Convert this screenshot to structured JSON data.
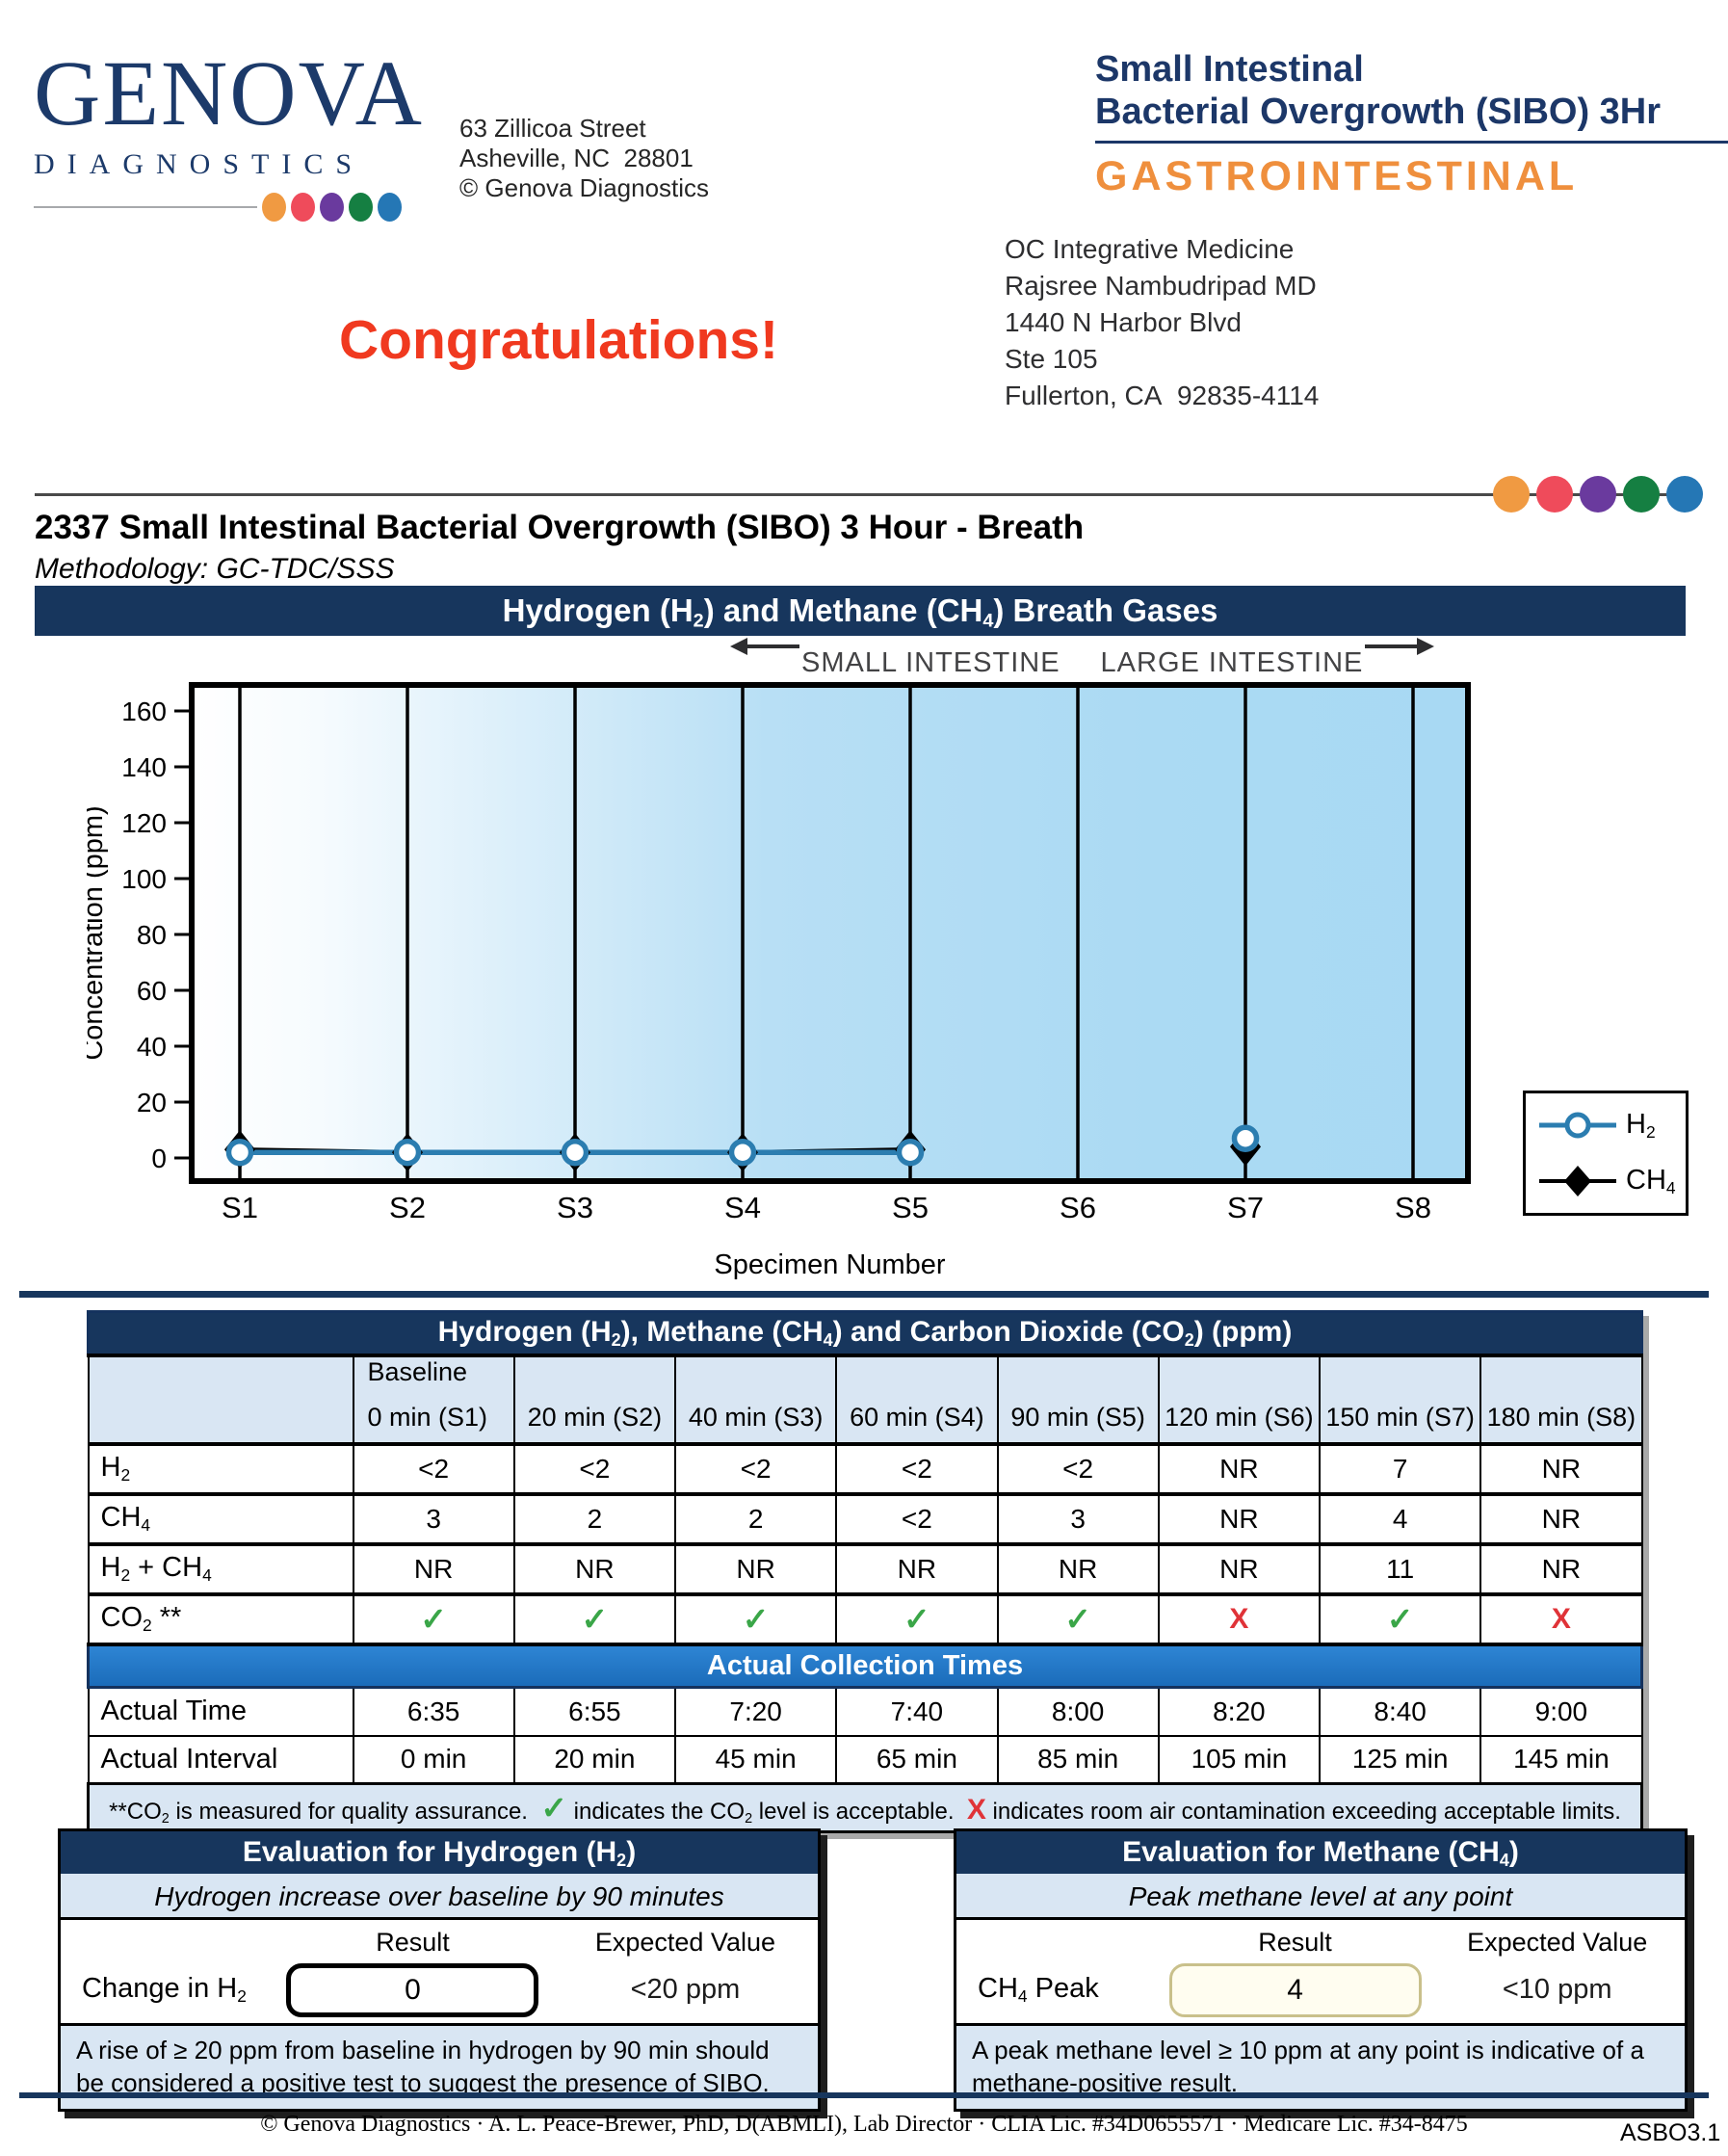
{
  "header": {
    "logo": {
      "name": "GENOVA",
      "sub": "DIAGNOSTICS"
    },
    "address": [
      "63 Zillicoa Street",
      "Asheville, NC  28801",
      "© Genova Diagnostics"
    ],
    "product": {
      "line1": "Small Intestinal",
      "line2": "Bacterial Overgrowth (SIBO) 3Hr",
      "category": "GASTROINTESTINAL"
    },
    "congratulations": "Congratulations!",
    "practice": [
      "OC Integrative Medicine",
      "Rajsree Nambudripad MD",
      "1440 N Harbor Blvd",
      "Ste 105",
      "Fullerton, CA  92835-4114"
    ]
  },
  "report": {
    "title": "2337 Small Intestinal Bacterial Overgrowth (SIBO) 3 Hour - Breath",
    "methodology": "Methodology: GC-TDC/SSS"
  },
  "chart": {
    "banner_parts": [
      {
        "t": "Hydrogen (H"
      },
      {
        "t": "2",
        "sub": true
      },
      {
        "t": ") and Methane (CH"
      },
      {
        "t": "4",
        "sub": true
      },
      {
        "t": ") Breath Gases"
      }
    ],
    "region_left": "SMALL INTESTINE",
    "region_right": "LARGE INTESTINE",
    "legend": [
      {
        "series": "H2",
        "label_parts": [
          {
            "t": "H"
          },
          {
            "t": "2",
            "sub": true
          }
        ]
      },
      {
        "series": "CH4",
        "label_parts": [
          {
            "t": "CH"
          },
          {
            "t": "4",
            "sub": true
          }
        ]
      }
    ]
  },
  "chart_data": {
    "type": "line",
    "title": "Hydrogen (H2) and Methane (CH4) Breath Gases",
    "x_categories": [
      "S1",
      "S2",
      "S3",
      "S4",
      "S5",
      "S6",
      "S7",
      "S8"
    ],
    "xlabel": "Specimen Number",
    "ylabel": "Concentration (ppm)",
    "ylim": [
      0,
      168
    ],
    "yticks": [
      0,
      20,
      40,
      60,
      80,
      100,
      120,
      140,
      160
    ],
    "grid": false,
    "legend_position": "outside-right-bottom",
    "series": [
      {
        "name": "H2",
        "marker": "circle",
        "color": "#2b7db0",
        "values": [
          2,
          2,
          2,
          2,
          2,
          null,
          7,
          null
        ]
      },
      {
        "name": "CH4",
        "marker": "diamond",
        "color": "#000000",
        "values": [
          3,
          2,
          2,
          2,
          3,
          null,
          4,
          null
        ]
      }
    ]
  },
  "results_table": {
    "title_parts": [
      {
        "t": "Hydrogen (H"
      },
      {
        "t": "2",
        "sub": true
      },
      {
        "t": "), Methane (CH"
      },
      {
        "t": "4",
        "sub": true
      },
      {
        "t": ") and Carbon Dioxide (CO"
      },
      {
        "t": "2",
        "sub": true
      },
      {
        "t": ") (ppm)"
      }
    ],
    "col_headers": [
      {
        "line1": "Baseline",
        "line2": "0 min (S1)"
      },
      {
        "line1": "",
        "line2": "20 min (S2)"
      },
      {
        "line1": "",
        "line2": "40 min (S3)"
      },
      {
        "line1": "",
        "line2": "60 min (S4)"
      },
      {
        "line1": "",
        "line2": "90 min (S5)"
      },
      {
        "line1": "",
        "line2": "120 min (S6)"
      },
      {
        "line1": "",
        "line2": "150 min (S7)"
      },
      {
        "line1": "",
        "line2": "180 min (S8)"
      }
    ],
    "rows": [
      {
        "label_parts": [
          {
            "t": "H"
          },
          {
            "t": "2",
            "sub": true
          }
        ],
        "values": [
          "<2",
          "<2",
          "<2",
          "<2",
          "<2",
          "NR",
          "7",
          "NR"
        ]
      },
      {
        "label_parts": [
          {
            "t": "CH"
          },
          {
            "t": "4",
            "sub": true
          }
        ],
        "values": [
          "3",
          "2",
          "2",
          "<2",
          "3",
          "NR",
          "4",
          "NR"
        ]
      },
      {
        "label_parts": [
          {
            "t": "H"
          },
          {
            "t": "2",
            "sub": true
          },
          {
            "t": " + CH"
          },
          {
            "t": "4",
            "sub": true
          }
        ],
        "values": [
          "NR",
          "NR",
          "NR",
          "NR",
          "NR",
          "NR",
          "11",
          "NR"
        ]
      },
      {
        "label_parts": [
          {
            "t": "CO"
          },
          {
            "t": "2",
            "sub": true
          },
          {
            "t": " **"
          }
        ],
        "values": [
          "check",
          "check",
          "check",
          "check",
          "check",
          "x",
          "check",
          "x"
        ]
      }
    ],
    "collection_banner": "Actual Collection Times",
    "time_rows": [
      {
        "label": "Actual Time",
        "values": [
          "6:35",
          "6:55",
          "7:20",
          "7:40",
          "8:00",
          "8:20",
          "8:40",
          "9:00"
        ]
      },
      {
        "label": "Actual Interval",
        "values": [
          "0 min",
          "20 min",
          "45 min",
          "65 min",
          "85 min",
          "105 min",
          "125 min",
          "145 min"
        ]
      }
    ],
    "footnote_parts": [
      {
        "t": "**CO"
      },
      {
        "t": "2",
        "sub": true
      },
      {
        "t": " is measured for quality assurance.  "
      },
      {
        "t": "✓",
        "cls": "green"
      },
      {
        "t": " indicates the CO"
      },
      {
        "t": "2",
        "sub": true
      },
      {
        "t": " level is acceptable.  "
      },
      {
        "t": "X",
        "cls": "red"
      },
      {
        "t": " indicates room air contamination exceeding acceptable limits."
      }
    ]
  },
  "evaluations": [
    {
      "header_parts": [
        {
          "t": "Evaluation for Hydrogen (H"
        },
        {
          "t": "2",
          "sub": true
        },
        {
          "t": ")"
        }
      ],
      "criterion": "Hydrogen increase over baseline by 90 minutes",
      "result_header": "Result",
      "expected_header": "Expected Value",
      "row_label_parts": [
        {
          "t": "Change in H"
        },
        {
          "t": "2",
          "sub": true
        }
      ],
      "result": "0",
      "expected": "<20 ppm",
      "result_box_style": "black",
      "note": "A rise of ≥ 20 ppm from baseline in hydrogen by 90 min should be considered a positive test to suggest the presence of SIBO."
    },
    {
      "header_parts": [
        {
          "t": "Evaluation for Methane (CH"
        },
        {
          "t": "4",
          "sub": true
        },
        {
          "t": ")"
        }
      ],
      "criterion": "Peak methane level at any point",
      "result_header": "Result",
      "expected_header": "Expected Value",
      "row_label_parts": [
        {
          "t": "CH"
        },
        {
          "t": "4",
          "sub": true
        },
        {
          "t": " Peak"
        }
      ],
      "result": "4",
      "expected": "<10 ppm",
      "result_box_style": "cream",
      "note": "A peak methane level ≥ 10 ppm at any point is indicative of a methane-positive result."
    }
  ],
  "footer": {
    "text": "© Genova Diagnostics · A. L. Peace-Brewer, PhD, D(ABMLI), Lab Director · CLIA Lic. #34D0655571 · Medicare Lic. #34-8475",
    "code": "ASBO3.1"
  },
  "colors": {
    "navy": "#17365d",
    "banner_blue": "#1f72c4",
    "light_blue": "#d9e6f3",
    "chart_fill": "#abdaf3",
    "h2_line": "#2b7db0",
    "orange": "#ef8f3d",
    "congrats_red": "#f0391f",
    "green_check": "#3aa648",
    "red_x": "#e03338",
    "brand_dots": [
      "#f09a42",
      "#ef4b5b",
      "#6a3a9e",
      "#157f42",
      "#2577b5"
    ]
  }
}
